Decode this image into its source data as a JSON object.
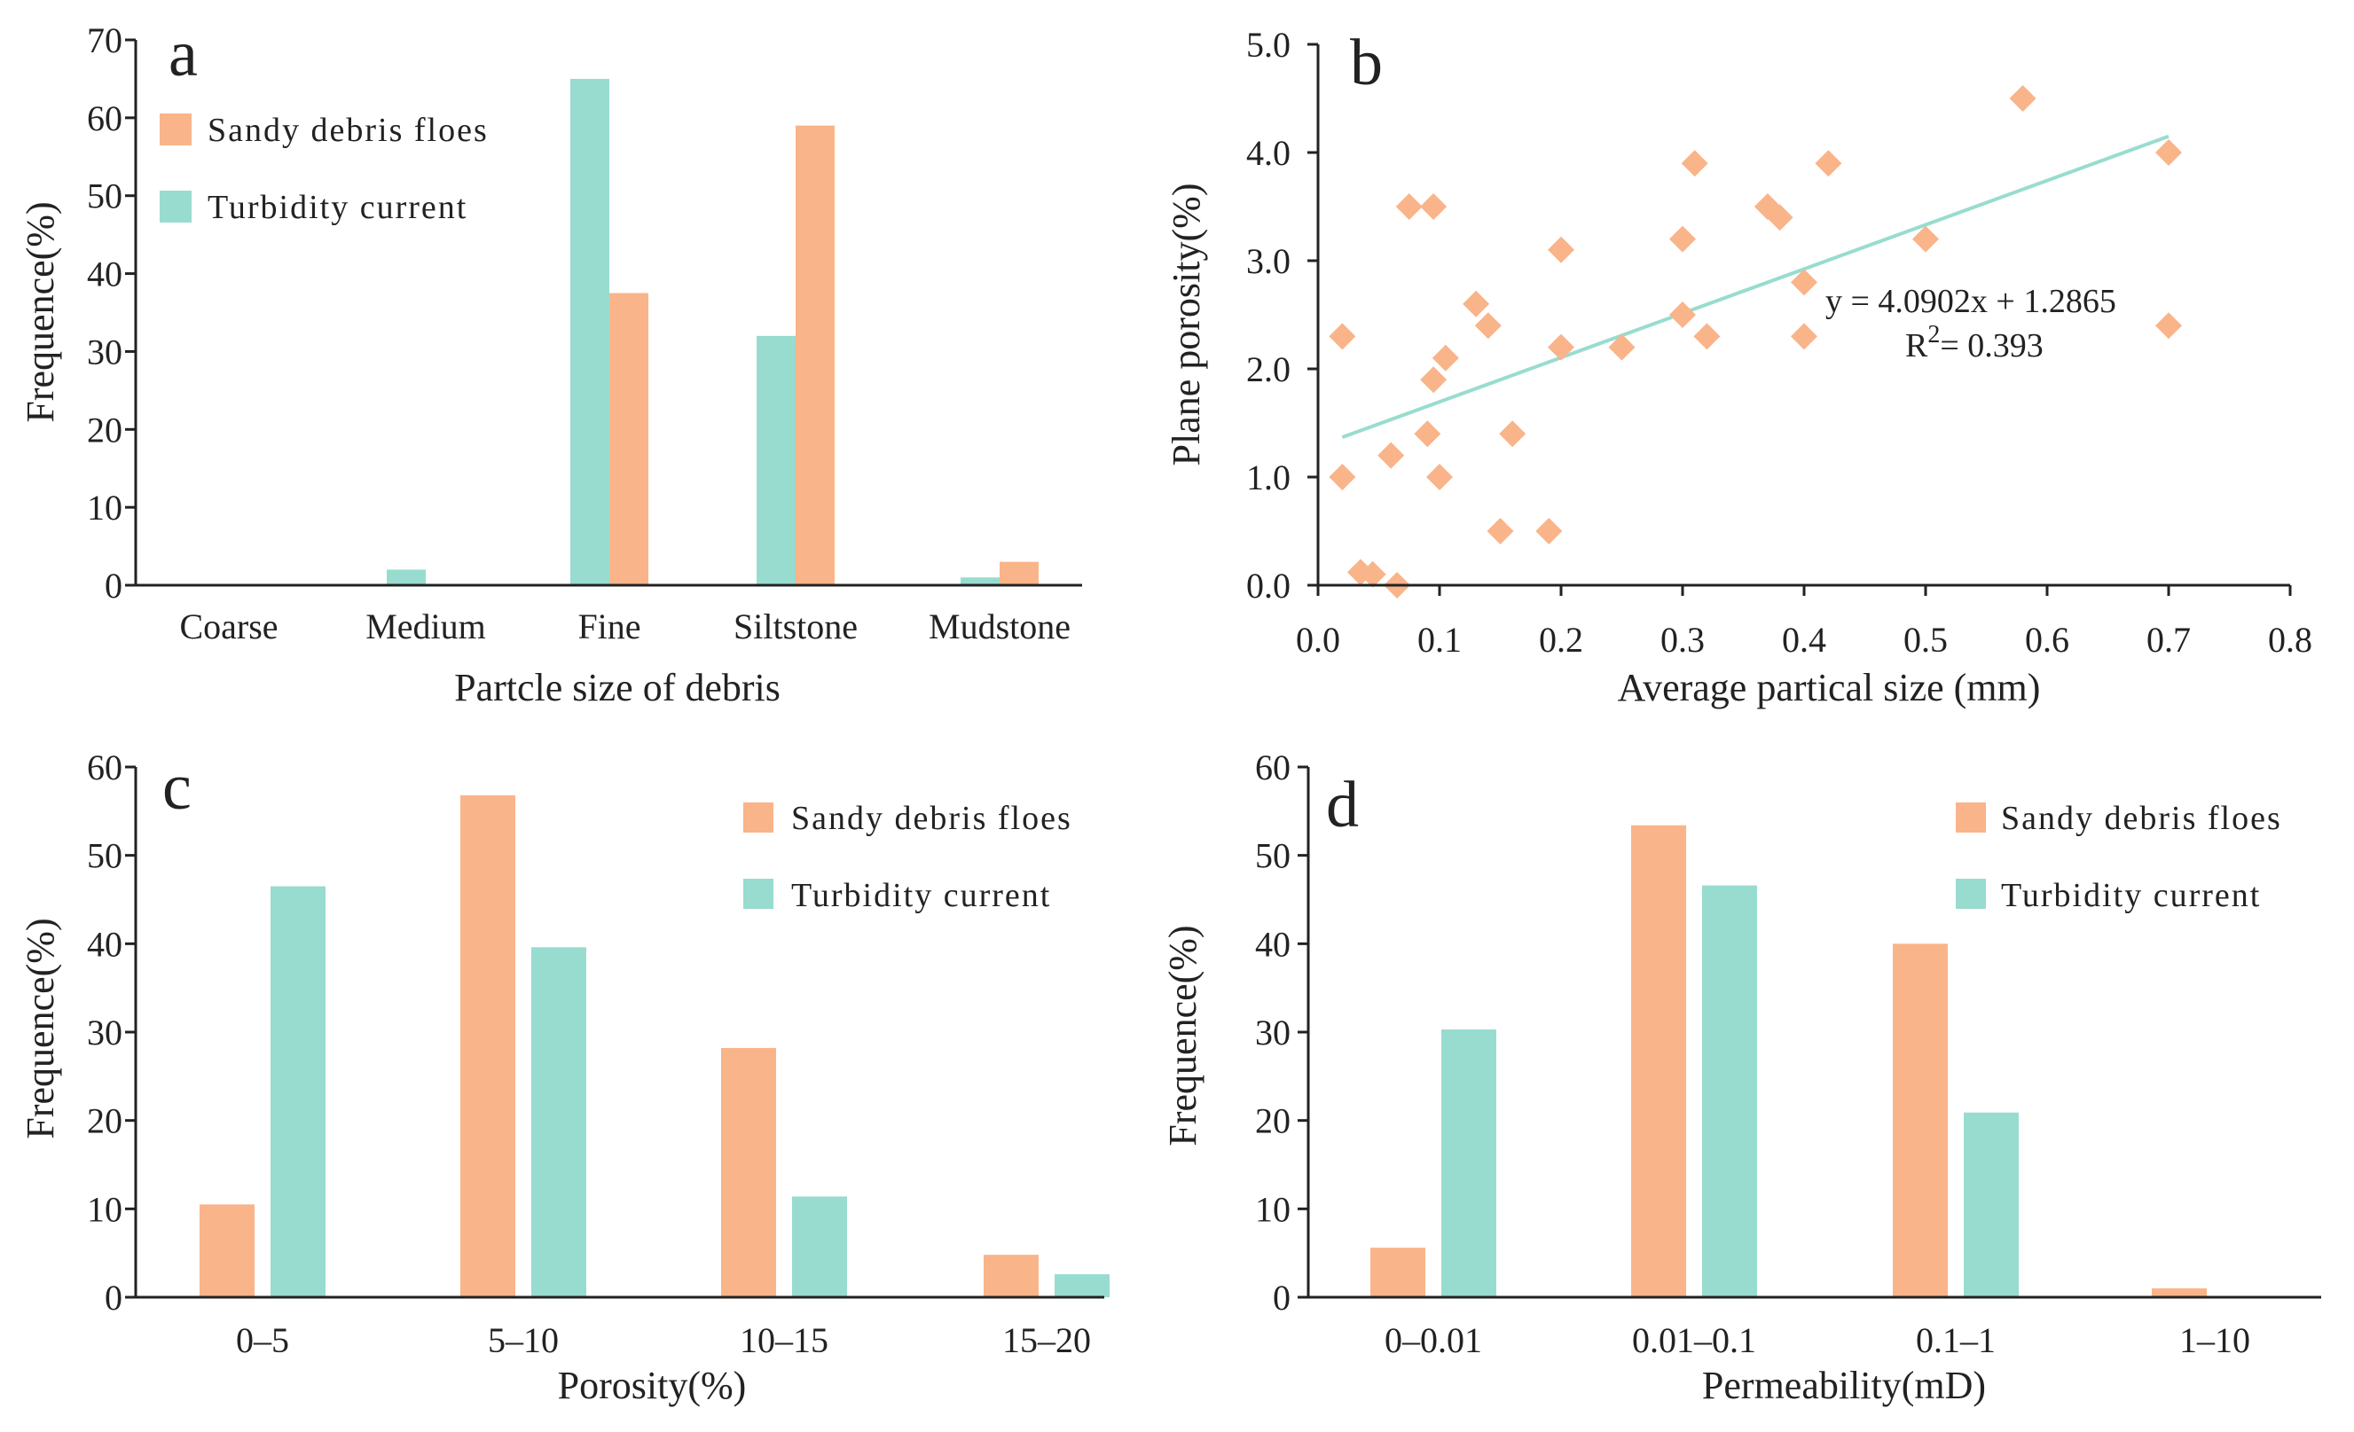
{
  "colors": {
    "sandy": "#F9B48A",
    "turbidity": "#98DCCF",
    "axis": "#222222"
  },
  "chart_data": [
    {
      "id": "a",
      "type": "bar",
      "panel_label": "a",
      "xlabel": "Partcle size of debris",
      "ylabel": "Frequence(%)",
      "ylim": [
        0,
        70
      ],
      "yticks": [
        "0",
        "10",
        "20",
        "30",
        "40",
        "50",
        "60",
        "70"
      ],
      "categories": [
        "Coarse",
        "Medium",
        "Fine",
        "Siltstone",
        "Mudstone"
      ],
      "series": [
        {
          "name": "Turbidity current",
          "color_key": "turbidity",
          "values": [
            0,
            2,
            65,
            32,
            1
          ]
        },
        {
          "name": "Sandy debris floes",
          "color_key": "sandy",
          "values": [
            0,
            0,
            37.5,
            59,
            3
          ]
        }
      ],
      "legend": [
        "Sandy debris floes",
        "Turbidity current"
      ],
      "legend_position": "top-left"
    },
    {
      "id": "b",
      "type": "scatter",
      "panel_label": "b",
      "xlabel": "Average partical size (mm)",
      "ylabel": "Plane porosity(%)",
      "xlim": [
        0,
        0.8
      ],
      "ylim": [
        0,
        5
      ],
      "xticks": [
        "0.0",
        "0.1",
        "0.2",
        "0.3",
        "0.4",
        "0.5",
        "0.6",
        "0.7",
        "0.8"
      ],
      "yticks": [
        "0.0",
        "1.0",
        "2.0",
        "3.0",
        "4.0",
        "5.0"
      ],
      "points": [
        [
          0.02,
          2.3
        ],
        [
          0.02,
          1.0
        ],
        [
          0.035,
          0.12
        ],
        [
          0.045,
          0.1
        ],
        [
          0.06,
          1.2
        ],
        [
          0.065,
          0.0
        ],
        [
          0.075,
          3.5
        ],
        [
          0.09,
          1.4
        ],
        [
          0.095,
          1.9
        ],
        [
          0.095,
          3.5
        ],
        [
          0.1,
          1.0
        ],
        [
          0.105,
          2.1
        ],
        [
          0.13,
          2.6
        ],
        [
          0.14,
          2.4
        ],
        [
          0.15,
          0.5
        ],
        [
          0.16,
          1.4
        ],
        [
          0.19,
          0.5
        ],
        [
          0.2,
          3.1
        ],
        [
          0.2,
          2.2
        ],
        [
          0.25,
          2.2
        ],
        [
          0.3,
          3.2
        ],
        [
          0.3,
          2.5
        ],
        [
          0.31,
          3.9
        ],
        [
          0.32,
          2.3
        ],
        [
          0.37,
          3.5
        ],
        [
          0.38,
          3.4
        ],
        [
          0.4,
          2.8
        ],
        [
          0.4,
          2.3
        ],
        [
          0.42,
          3.9
        ],
        [
          0.5,
          3.2
        ],
        [
          0.58,
          4.5
        ],
        [
          0.7,
          4.0
        ],
        [
          0.7,
          2.4
        ]
      ],
      "fit_line": {
        "x": [
          0.02,
          0.7
        ],
        "slope": 4.0902,
        "intercept": 1.2865
      },
      "equation": "y = 4.0902x + 1.2865",
      "r2_prefix": "R",
      "r2_sup": "2",
      "r2_value": "= 0.393"
    },
    {
      "id": "c",
      "type": "bar",
      "panel_label": "c",
      "xlabel": "Porosity(%)",
      "ylabel": "Frequence(%)",
      "ylim": [
        0,
        60
      ],
      "yticks": [
        "0",
        "10",
        "20",
        "30",
        "40",
        "50",
        "60"
      ],
      "categories": [
        "0–5",
        "5–10",
        "10–15",
        "15–20"
      ],
      "series": [
        {
          "name": "Sandy debris floes",
          "color_key": "sandy",
          "values": [
            10.5,
            56.8,
            28.2,
            4.8
          ]
        },
        {
          "name": "Turbidity current",
          "color_key": "turbidity",
          "values": [
            46.5,
            39.6,
            11.4,
            2.6
          ]
        }
      ],
      "legend": [
        "Sandy debris floes",
        "Turbidity current"
      ],
      "legend_position": "top-right"
    },
    {
      "id": "d",
      "type": "bar",
      "panel_label": "d",
      "xlabel": "Permeability(mD)",
      "ylabel": "Frequence(%)",
      "ylim": [
        0,
        60
      ],
      "yticks": [
        "0",
        "10",
        "20",
        "30",
        "40",
        "50",
        "60"
      ],
      "categories": [
        "0–0.01",
        "0.01–0.1",
        "0.1–1",
        "1–10"
      ],
      "series": [
        {
          "name": "Sandy debris floes",
          "color_key": "sandy",
          "values": [
            5.6,
            53.4,
            40.0,
            1.0
          ]
        },
        {
          "name": "Turbidity current",
          "color_key": "turbidity",
          "values": [
            30.3,
            46.6,
            20.9,
            0
          ]
        }
      ],
      "legend": [
        "Sandy debris floes",
        "Turbidity current"
      ],
      "legend_position": "top-right"
    }
  ]
}
